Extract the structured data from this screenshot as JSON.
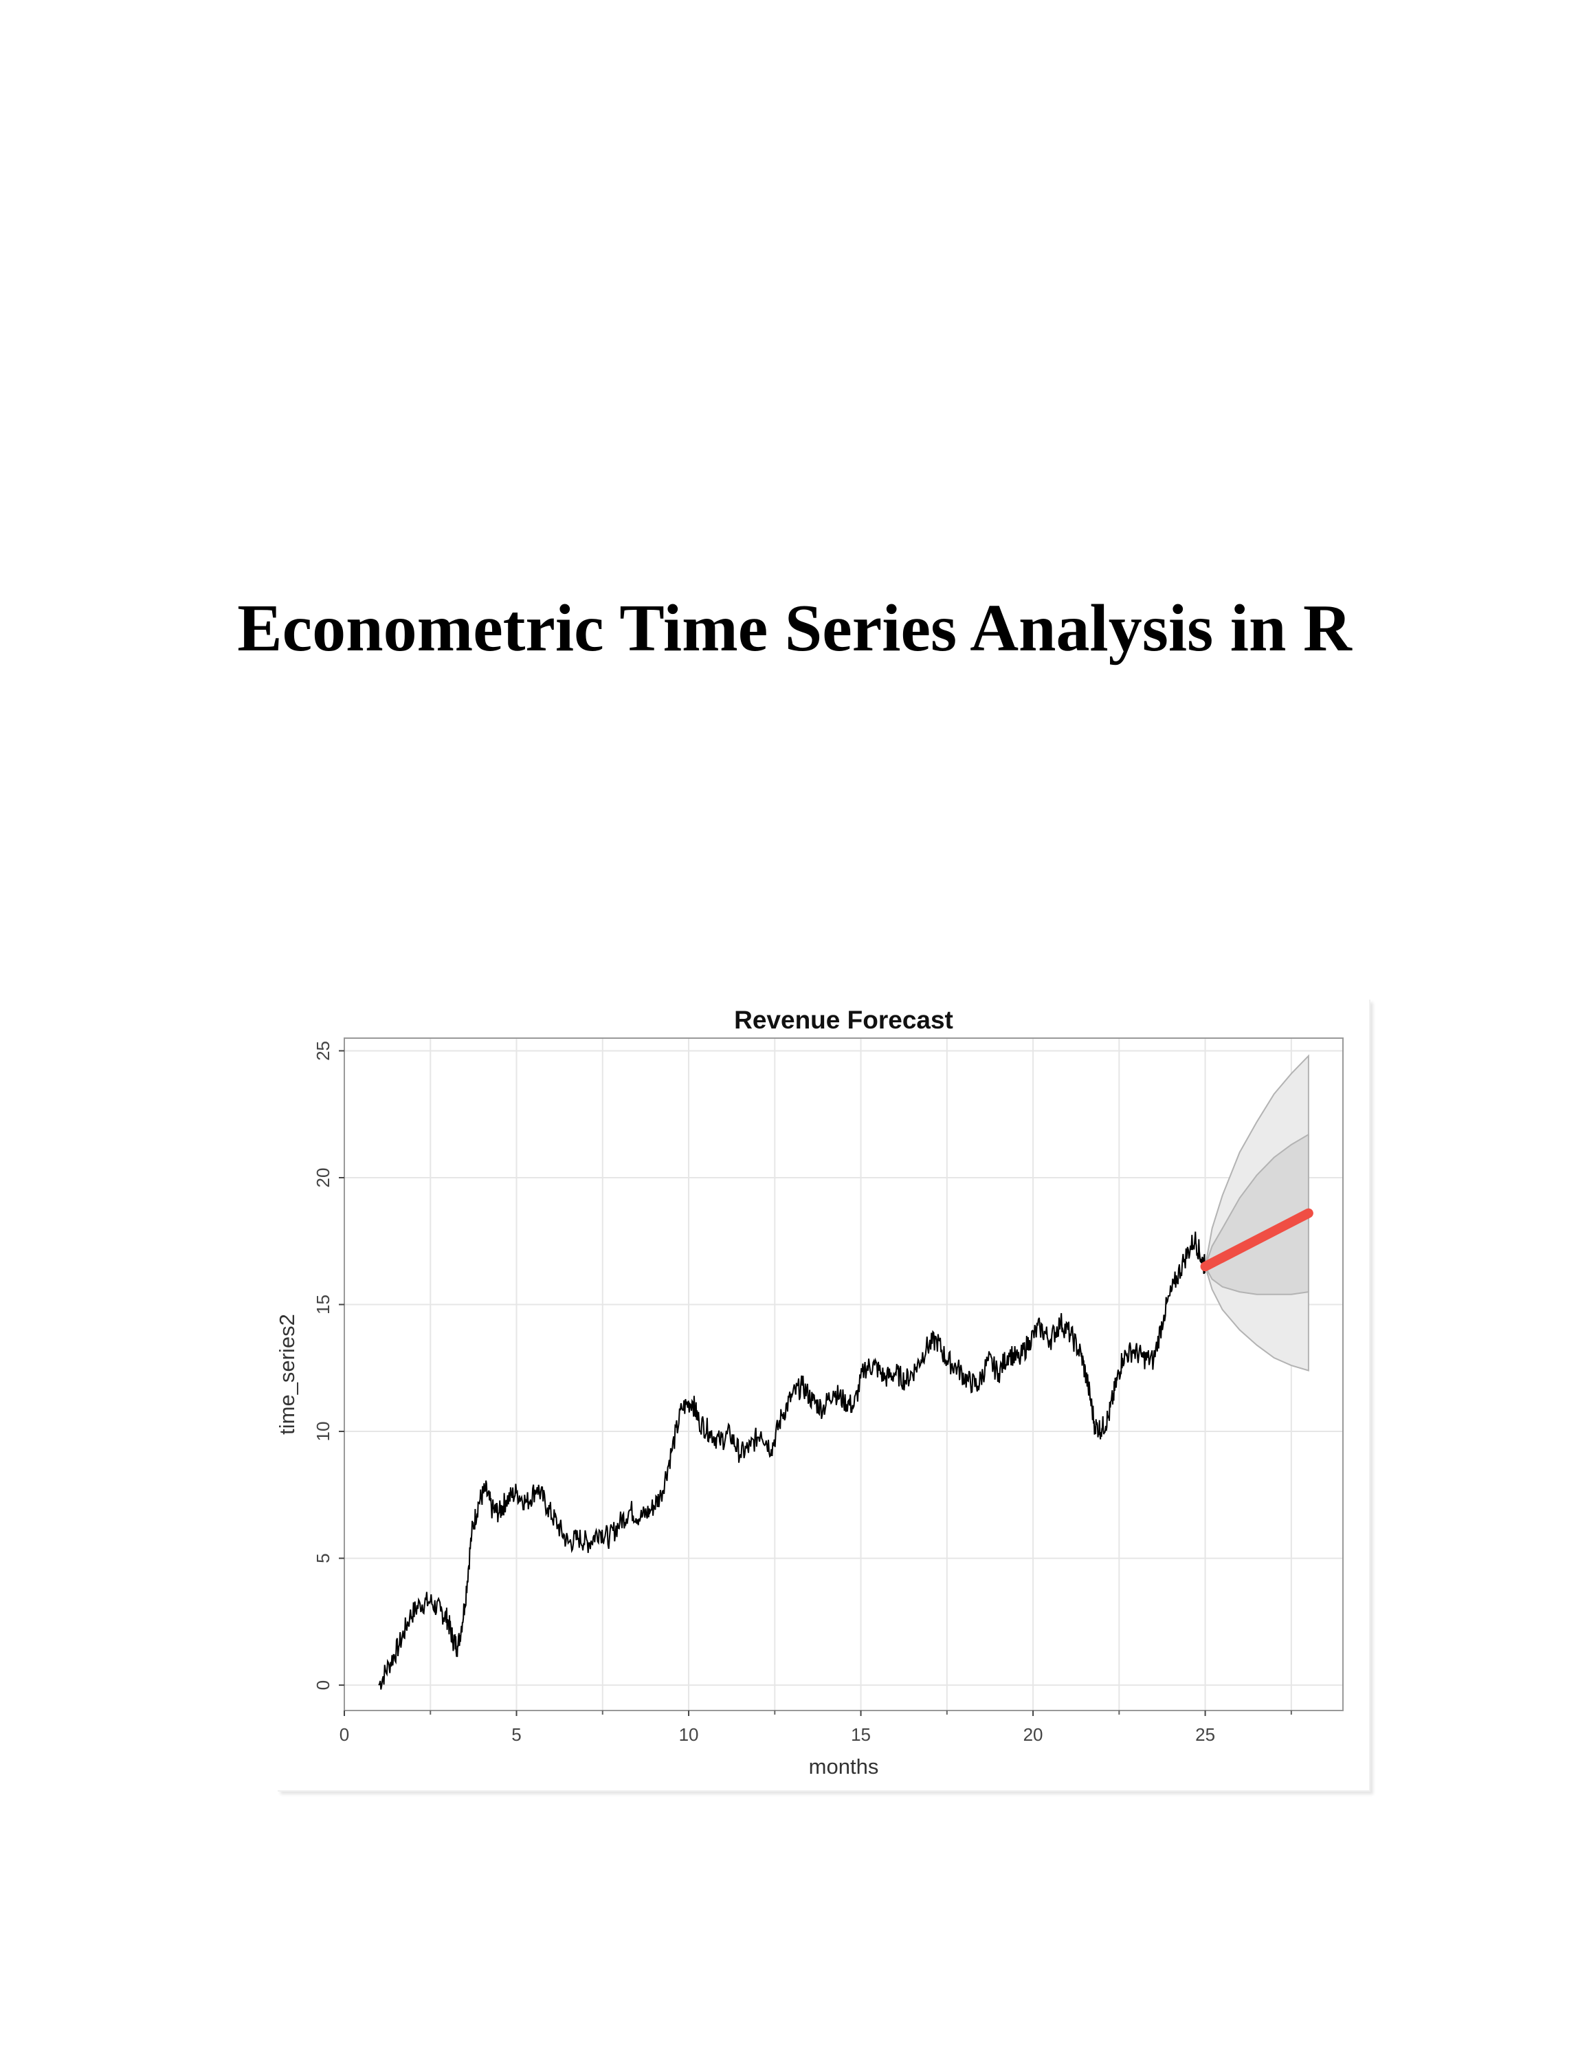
{
  "document": {
    "title": "Econometric Time Series Analysis in R"
  },
  "colors": {
    "forecast_line": "#f04e44",
    "outer_band": "#ebebeb",
    "inner_band": "#d9d9d9",
    "grid": "#e6e6e6",
    "series_line": "#000000"
  },
  "chart_data": {
    "type": "line",
    "title": "Revenue Forecast",
    "xlabel": "months",
    "ylabel": "time_series2",
    "xlim": [
      0,
      29
    ],
    "ylim": [
      -1,
      25.5
    ],
    "x_ticks": [
      0,
      5,
      10,
      15,
      20,
      25
    ],
    "y_ticks": [
      0,
      5,
      10,
      15,
      20,
      25
    ],
    "grid": true,
    "series": [
      {
        "role": "observed",
        "points": [
          [
            1.0,
            0.0
          ],
          [
            1.3,
            0.8
          ],
          [
            1.6,
            1.6
          ],
          [
            1.9,
            2.7
          ],
          [
            2.2,
            3.2
          ],
          [
            2.5,
            3.3
          ],
          [
            2.8,
            2.9
          ],
          [
            3.0,
            2.6
          ],
          [
            3.15,
            1.8
          ],
          [
            3.3,
            1.5
          ],
          [
            3.5,
            3.2
          ],
          [
            3.7,
            6.0
          ],
          [
            3.9,
            7.2
          ],
          [
            4.1,
            7.7
          ],
          [
            4.3,
            6.9
          ],
          [
            4.5,
            6.8
          ],
          [
            4.7,
            7.3
          ],
          [
            5.0,
            7.6
          ],
          [
            5.3,
            7.2
          ],
          [
            5.6,
            7.8
          ],
          [
            5.9,
            7.0
          ],
          [
            6.2,
            6.3
          ],
          [
            6.5,
            5.6
          ],
          [
            6.8,
            5.8
          ],
          [
            7.1,
            5.6
          ],
          [
            7.4,
            6.1
          ],
          [
            7.7,
            5.8
          ],
          [
            8.0,
            6.4
          ],
          [
            8.3,
            6.9
          ],
          [
            8.6,
            6.6
          ],
          [
            8.9,
            6.9
          ],
          [
            9.2,
            7.5
          ],
          [
            9.5,
            9.2
          ],
          [
            9.8,
            10.9
          ],
          [
            10.1,
            11.2
          ],
          [
            10.3,
            10.4
          ],
          [
            10.6,
            10.0
          ],
          [
            10.9,
            9.6
          ],
          [
            11.2,
            9.9
          ],
          [
            11.5,
            9.1
          ],
          [
            11.8,
            9.4
          ],
          [
            12.1,
            10.0
          ],
          [
            12.4,
            9.3
          ],
          [
            12.7,
            10.6
          ],
          [
            13.0,
            11.4
          ],
          [
            13.3,
            11.8
          ],
          [
            13.6,
            11.2
          ],
          [
            13.9,
            10.9
          ],
          [
            14.2,
            11.6
          ],
          [
            14.5,
            11.2
          ],
          [
            14.8,
            11.0
          ],
          [
            15.1,
            12.5
          ],
          [
            15.4,
            12.6
          ],
          [
            15.7,
            12.1
          ],
          [
            16.0,
            12.3
          ],
          [
            16.3,
            12.0
          ],
          [
            16.6,
            12.5
          ],
          [
            16.9,
            13.3
          ],
          [
            17.2,
            13.6
          ],
          [
            17.5,
            12.8
          ],
          [
            17.8,
            12.5
          ],
          [
            18.1,
            12.0
          ],
          [
            18.4,
            11.8
          ],
          [
            18.7,
            12.8
          ],
          [
            19.0,
            12.3
          ],
          [
            19.3,
            13.1
          ],
          [
            19.6,
            12.8
          ],
          [
            19.9,
            13.6
          ],
          [
            20.2,
            14.1
          ],
          [
            20.5,
            13.6
          ],
          [
            20.8,
            14.3
          ],
          [
            21.1,
            13.8
          ],
          [
            21.4,
            13.0
          ],
          [
            21.6,
            11.8
          ],
          [
            21.8,
            10.2
          ],
          [
            22.0,
            10.1
          ],
          [
            22.2,
            10.6
          ],
          [
            22.4,
            11.8
          ],
          [
            22.6,
            12.9
          ],
          [
            22.9,
            13.2
          ],
          [
            23.2,
            12.9
          ],
          [
            23.5,
            12.8
          ],
          [
            23.8,
            14.6
          ],
          [
            24.1,
            15.8
          ],
          [
            24.4,
            16.8
          ],
          [
            24.7,
            17.6
          ],
          [
            24.9,
            16.8
          ],
          [
            25.0,
            16.5
          ]
        ]
      },
      {
        "role": "forecast",
        "x": [
          25.0,
          28.0
        ],
        "y": [
          16.5,
          18.6
        ]
      }
    ],
    "bands": [
      {
        "level": "outer",
        "x": [
          25.0,
          25.2,
          25.5,
          26.0,
          26.5,
          27.0,
          27.5,
          28.0
        ],
        "lower": [
          16.5,
          15.6,
          14.8,
          14.0,
          13.4,
          12.9,
          12.6,
          12.4
        ],
        "upper": [
          16.5,
          18.0,
          19.3,
          21.0,
          22.2,
          23.3,
          24.1,
          24.8
        ]
      },
      {
        "level": "inner",
        "x": [
          25.0,
          25.2,
          25.5,
          26.0,
          26.5,
          27.0,
          27.5,
          28.0
        ],
        "lower": [
          16.5,
          16.0,
          15.7,
          15.5,
          15.4,
          15.4,
          15.4,
          15.5
        ],
        "upper": [
          16.5,
          17.3,
          18.0,
          19.2,
          20.1,
          20.8,
          21.3,
          21.7
        ]
      }
    ]
  }
}
